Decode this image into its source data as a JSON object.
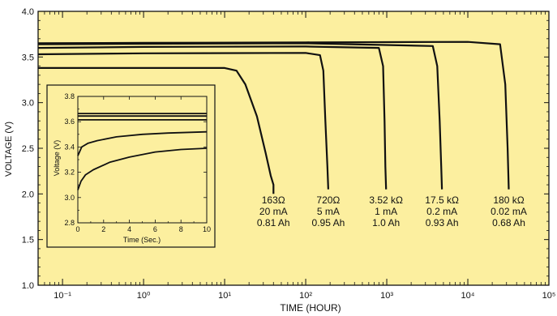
{
  "colors": {
    "background": "#fcef9f",
    "line": "#111111"
  },
  "chart_data": [
    {
      "type": "line",
      "xlabel": "TIME (HOUR)",
      "ylabel": "VOLTAGE (V)",
      "xscale": "log",
      "xlim": [
        0.05,
        100000
      ],
      "ylim": [
        1.0,
        4.0
      ],
      "x_tick_labels": [
        "10⁻¹",
        "10⁰",
        "10¹",
        "10²",
        "10³",
        "10⁴",
        "10⁵"
      ],
      "y_tick_labels": [
        "1.0",
        "1.5",
        "2.0",
        "2.5",
        "3.0",
        "3.5",
        "4.0"
      ],
      "grid": false,
      "series": [
        {
          "name": "163Ω 20 mA 0.81 Ah",
          "labels": [
            "163Ω",
            "20 mA",
            "0.81 Ah"
          ],
          "x": [
            0.05,
            1,
            10,
            14,
            18,
            25,
            32,
            37,
            40,
            40
          ],
          "y": [
            3.38,
            3.38,
            3.38,
            3.35,
            3.2,
            2.85,
            2.45,
            2.2,
            2.1,
            2.0
          ]
        },
        {
          "name": "720Ω 5 mA 0.95 Ah",
          "labels": [
            "720Ω",
            "5 mA",
            "0.95 Ah"
          ],
          "x": [
            0.05,
            1,
            100,
            150,
            165,
            175,
            185,
            190
          ],
          "y": [
            3.53,
            3.54,
            3.545,
            3.52,
            3.35,
            2.8,
            2.3,
            2.05
          ]
        },
        {
          "name": "3.52 kΩ 1 mA 1.0 Ah",
          "labels": [
            "3.52 kΩ",
            "1 mA",
            "1.0 Ah"
          ],
          "x": [
            0.05,
            1,
            100,
            800,
            900,
            940,
            960,
            980
          ],
          "y": [
            3.6,
            3.61,
            3.615,
            3.6,
            3.4,
            2.8,
            2.3,
            2.05
          ]
        },
        {
          "name": "17.5 kΩ 0.2 mA 0.93 Ah",
          "labels": [
            "17.5 kΩ",
            "0.2 mA",
            "0.93 Ah"
          ],
          "x": [
            0.05,
            1,
            100,
            3700,
            4200,
            4500,
            4700,
            4800
          ],
          "y": [
            3.64,
            3.645,
            3.65,
            3.62,
            3.4,
            2.8,
            2.3,
            2.05
          ]
        },
        {
          "name": "180 kΩ 0.02 mA 0.68 Ah",
          "labels": [
            "180 kΩ",
            "0.02 mA",
            "0.68 Ah"
          ],
          "x": [
            0.05,
            1,
            100,
            10000,
            25000,
            29000,
            31000,
            32000
          ],
          "y": [
            3.65,
            3.655,
            3.66,
            3.665,
            3.64,
            3.2,
            2.5,
            2.05
          ]
        }
      ]
    },
    {
      "type": "line",
      "xlabel": "Time (Sec.)",
      "ylabel": "Voltage (V)",
      "xlim": [
        0,
        10
      ],
      "ylim": [
        2.8,
        3.8
      ],
      "x_tick_labels": [
        "0",
        "2",
        "4",
        "6",
        "8",
        "10"
      ],
      "y_tick_labels": [
        "2.8",
        "3.0",
        "3.2",
        "3.4",
        "3.6",
        "3.8"
      ],
      "grid": false,
      "series": [
        {
          "x": [
            0,
            10
          ],
          "y": [
            3.665,
            3.665
          ]
        },
        {
          "x": [
            0,
            10
          ],
          "y": [
            3.645,
            3.645
          ]
        },
        {
          "x": [
            0,
            10
          ],
          "y": [
            3.615,
            3.615
          ]
        },
        {
          "x": [
            0,
            0.3,
            0.8,
            1.5,
            3,
            5,
            7,
            10
          ],
          "y": [
            3.33,
            3.4,
            3.43,
            3.45,
            3.48,
            3.5,
            3.51,
            3.52
          ]
        },
        {
          "x": [
            0,
            0.25,
            0.6,
            1.2,
            2.5,
            4,
            6,
            8,
            10
          ],
          "y": [
            3.06,
            3.13,
            3.18,
            3.22,
            3.28,
            3.32,
            3.36,
            3.38,
            3.39
          ]
        }
      ]
    }
  ]
}
